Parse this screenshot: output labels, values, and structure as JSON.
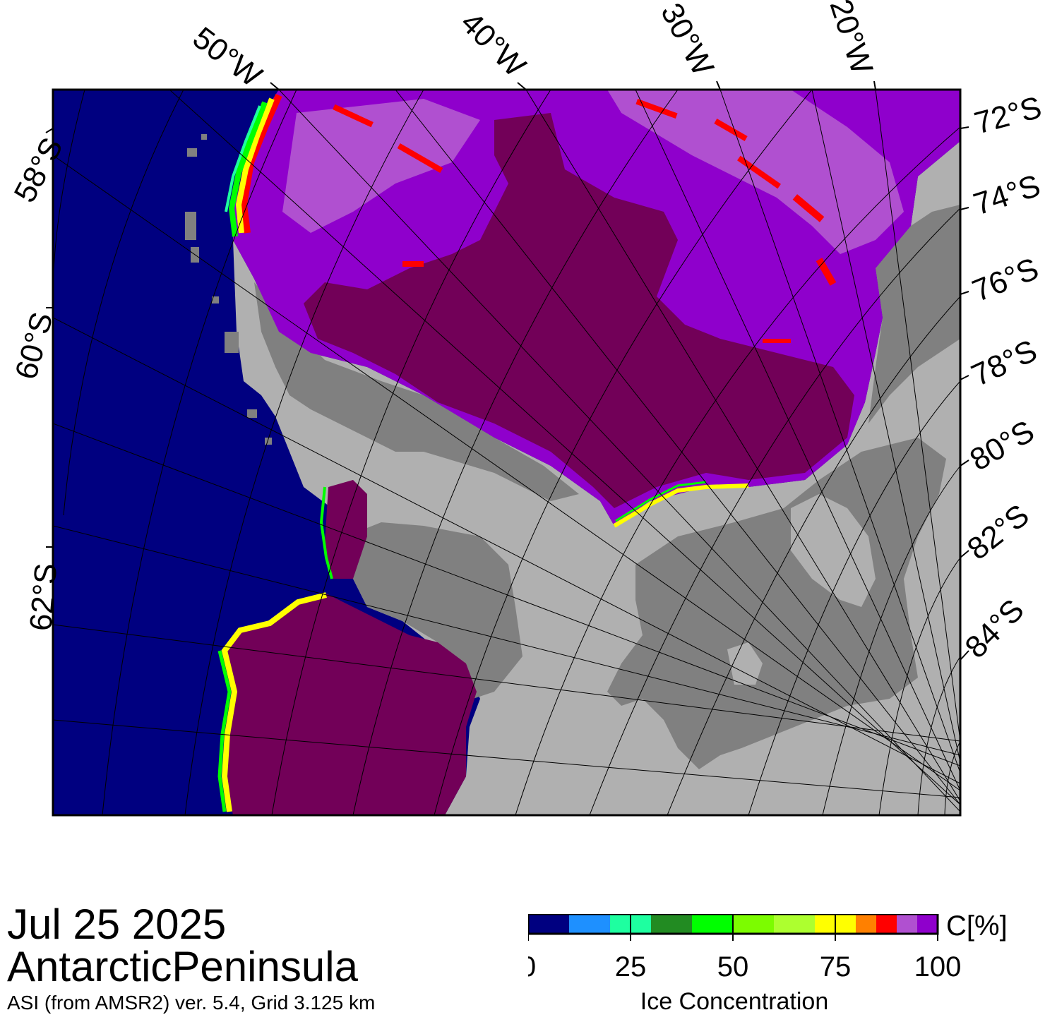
{
  "title": {
    "date": "Jul 25 2025",
    "region": "AntarcticPeninsula",
    "product": "ASI (from AMSR2) ver. 5.4,  Grid 3.125 km"
  },
  "map": {
    "longitude_labels": [
      "50°W",
      "40°W",
      "30°W",
      "20°W"
    ],
    "latitude_labels_left": [
      "58°S",
      "60°S",
      "62°S"
    ],
    "latitude_labels_right": [
      "72°S",
      "74°S",
      "76°S",
      "78°S",
      "80°S",
      "82°S",
      "84°S"
    ],
    "colors": {
      "open_ocean": "#000080",
      "land": "#b0b0b0",
      "ice_shelf": "#808080",
      "ice_100": "#720058",
      "ice_95": "#8f00cc",
      "ice_90": "#b050d0",
      "ice_85": "#ff0000"
    }
  },
  "legend": {
    "unit": "C[%]",
    "label": "Ice Concentration",
    "tick_labels": [
      "0",
      "25",
      "50",
      "75",
      "100"
    ],
    "min": 0,
    "max": 100,
    "bins": [
      {
        "from": 0,
        "to": 10,
        "color": "#000080"
      },
      {
        "from": 10,
        "to": 20,
        "color": "#1e90ff"
      },
      {
        "from": 20,
        "to": 30,
        "color": "#1effa0"
      },
      {
        "from": 30,
        "to": 40,
        "color": "#228b22"
      },
      {
        "from": 40,
        "to": 50,
        "color": "#00ff00"
      },
      {
        "from": 50,
        "to": 60,
        "color": "#7cfc00"
      },
      {
        "from": 60,
        "to": 70,
        "color": "#adff2f"
      },
      {
        "from": 70,
        "to": 80,
        "color": "#ffff00"
      },
      {
        "from": 80,
        "to": 85,
        "color": "#ff8000"
      },
      {
        "from": 85,
        "to": 90,
        "color": "#ff0000"
      },
      {
        "from": 90,
        "to": 95,
        "color": "#b050d0"
      },
      {
        "from": 95,
        "to": 100,
        "color": "#8f00cc"
      }
    ]
  }
}
